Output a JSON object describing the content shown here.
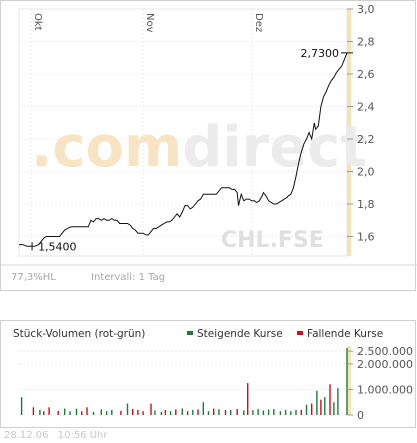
{
  "watermark": {
    "brand_light": ".com",
    "brand_dark": "direct",
    "symbol": "CHL.FSE"
  },
  "chart_data": [
    {
      "type": "line",
      "title": "",
      "xlabel": "",
      "ylabel": "",
      "x_tick_labels": [
        "Okt",
        "Nov",
        "Dez"
      ],
      "y_ticks": [
        "1,6",
        "1,8",
        "2,0",
        "2,2",
        "2,4",
        "2,6",
        "2,8",
        "3,0"
      ],
      "ylim": [
        1.48,
        3.0
      ],
      "annotations": {
        "low": "1,5400",
        "last": "2,7300"
      },
      "stats": {
        "hl_label": "77,3%HL",
        "interval_label": "Intervall: 1 Tag"
      },
      "grid": true,
      "series": [
        {
          "points": [
            [
              0,
              1.55
            ],
            [
              3,
              1.55
            ],
            [
              6,
              1.54
            ],
            [
              9,
              1.54
            ],
            [
              12,
              1.54
            ],
            [
              15,
              1.55
            ],
            [
              17,
              1.57
            ],
            [
              19,
              1.59
            ],
            [
              21,
              1.6
            ],
            [
              23,
              1.6
            ],
            [
              26,
              1.6
            ],
            [
              29,
              1.6
            ],
            [
              31,
              1.6
            ],
            [
              33,
              1.62
            ],
            [
              35,
              1.64
            ],
            [
              37,
              1.65
            ],
            [
              40,
              1.66
            ],
            [
              43,
              1.66
            ],
            [
              46,
              1.66
            ],
            [
              49,
              1.66
            ],
            [
              51,
              1.66
            ],
            [
              53,
              1.66
            ],
            [
              55,
              1.7
            ],
            [
              57,
              1.69
            ],
            [
              59,
              1.71
            ],
            [
              61,
              1.71
            ],
            [
              63,
              1.7
            ],
            [
              65,
              1.71
            ],
            [
              67,
              1.7
            ],
            [
              69,
              1.7
            ],
            [
              71,
              1.71
            ],
            [
              73,
              1.7
            ],
            [
              75,
              1.7
            ],
            [
              77,
              1.68
            ],
            [
              79,
              1.68
            ],
            [
              81,
              1.68
            ],
            [
              83,
              1.68
            ],
            [
              85,
              1.67
            ],
            [
              87,
              1.65
            ],
            [
              89,
              1.64
            ],
            [
              91,
              1.62
            ],
            [
              93,
              1.62
            ],
            [
              95,
              1.62
            ],
            [
              97,
              1.61
            ],
            [
              99,
              1.61
            ],
            [
              101,
              1.63
            ],
            [
              103,
              1.65
            ],
            [
              105,
              1.65
            ],
            [
              107,
              1.66
            ],
            [
              109,
              1.67
            ],
            [
              111,
              1.68
            ],
            [
              113,
              1.69
            ],
            [
              115,
              1.69
            ],
            [
              117,
              1.7
            ],
            [
              119,
              1.72
            ],
            [
              121,
              1.74
            ],
            [
              123,
              1.72
            ],
            [
              125,
              1.75
            ],
            [
              127,
              1.79
            ],
            [
              129,
              1.79
            ],
            [
              131,
              1.77
            ],
            [
              133,
              1.78
            ],
            [
              135,
              1.8
            ],
            [
              137,
              1.82
            ],
            [
              139,
              1.83
            ],
            [
              141,
              1.86
            ],
            [
              143,
              1.86
            ],
            [
              145,
              1.86
            ],
            [
              147,
              1.86
            ],
            [
              149,
              1.86
            ],
            [
              151,
              1.86
            ],
            [
              153,
              1.88
            ],
            [
              155,
              1.9
            ],
            [
              157,
              1.9
            ],
            [
              159,
              1.9
            ],
            [
              161,
              1.9
            ],
            [
              163,
              1.89
            ],
            [
              165,
              1.89
            ],
            [
              167,
              1.87
            ],
            [
              168,
              1.79
            ],
            [
              170,
              1.86
            ],
            [
              172,
              1.82
            ],
            [
              174,
              1.83
            ],
            [
              176,
              1.83
            ],
            [
              178,
              1.82
            ],
            [
              180,
              1.82
            ],
            [
              182,
              1.81
            ],
            [
              184,
              1.82
            ],
            [
              186,
              1.85
            ],
            [
              187,
              1.87
            ],
            [
              189,
              1.85
            ],
            [
              191,
              1.82
            ],
            [
              193,
              1.81
            ],
            [
              195,
              1.8
            ],
            [
              197,
              1.8
            ],
            [
              199,
              1.81
            ],
            [
              201,
              1.82
            ],
            [
              203,
              1.83
            ],
            [
              205,
              1.84
            ],
            [
              206,
              1.85
            ],
            [
              208,
              1.86
            ],
            [
              210,
              1.9
            ],
            [
              212,
              1.97
            ],
            [
              214,
              2.05
            ],
            [
              216,
              2.12
            ],
            [
              218,
              2.17
            ],
            [
              220,
              2.2
            ],
            [
              222,
              2.24
            ],
            [
              224,
              2.2
            ],
            [
              226,
              2.3
            ],
            [
              227,
              2.26
            ],
            [
              229,
              2.28
            ],
            [
              231,
              2.4
            ],
            [
              233,
              2.46
            ],
            [
              235,
              2.49
            ],
            [
              237,
              2.53
            ],
            [
              239,
              2.56
            ],
            [
              241,
              2.58
            ],
            [
              243,
              2.61
            ],
            [
              245,
              2.63
            ],
            [
              247,
              2.65
            ],
            [
              249,
              2.69
            ],
            [
              251,
              2.73
            ]
          ]
        }
      ]
    },
    {
      "type": "bar",
      "title": "Stück-Volumen (rot-grün)",
      "xlabel": "",
      "ylabel": "",
      "y_ticks": [
        "0",
        "1.000.000",
        "2.000.000",
        "2.500.000"
      ],
      "ylim": [
        0,
        2700000
      ],
      "legend": {
        "position": "top-right",
        "items": [
          {
            "label": "Steigende Kurse",
            "color": "#1f7a3a"
          },
          {
            "label": "Fallende Kurse",
            "color": "#c0141e"
          }
        ]
      },
      "grid": true,
      "bars": [
        [
          2,
          700000,
          "green"
        ],
        [
          11,
          300000,
          "red"
        ],
        [
          16,
          200000,
          "green"
        ],
        [
          19,
          150000,
          "red"
        ],
        [
          23,
          300000,
          "red"
        ],
        [
          30,
          160000,
          "red"
        ],
        [
          35,
          250000,
          "green"
        ],
        [
          39,
          150000,
          "green"
        ],
        [
          44,
          250000,
          "green"
        ],
        [
          48,
          150000,
          "red"
        ],
        [
          52,
          300000,
          "red"
        ],
        [
          57,
          120000,
          "green"
        ],
        [
          63,
          220000,
          "green"
        ],
        [
          67,
          150000,
          "green"
        ],
        [
          71,
          200000,
          "green"
        ],
        [
          78,
          160000,
          "red"
        ],
        [
          83,
          450000,
          "green"
        ],
        [
          87,
          240000,
          "red"
        ],
        [
          91,
          200000,
          "red"
        ],
        [
          95,
          150000,
          "red"
        ],
        [
          101,
          450000,
          "red"
        ],
        [
          104,
          180000,
          "green"
        ],
        [
          109,
          120000,
          "green"
        ],
        [
          112,
          200000,
          "red"
        ],
        [
          116,
          150000,
          "green"
        ],
        [
          120,
          220000,
          "red"
        ],
        [
          125,
          260000,
          "green"
        ],
        [
          129,
          150000,
          "red"
        ],
        [
          133,
          200000,
          "green"
        ],
        [
          137,
          220000,
          "red"
        ],
        [
          141,
          500000,
          "green"
        ],
        [
          145,
          150000,
          "green"
        ],
        [
          149,
          250000,
          "red"
        ],
        [
          153,
          220000,
          "green"
        ],
        [
          158,
          200000,
          "red"
        ],
        [
          162,
          200000,
          "green"
        ],
        [
          167,
          230000,
          "red"
        ],
        [
          172,
          180000,
          "green"
        ],
        [
          175,
          1250000,
          "red"
        ],
        [
          179,
          190000,
          "green"
        ],
        [
          183,
          230000,
          "green"
        ],
        [
          187,
          180000,
          "green"
        ],
        [
          191,
          210000,
          "green"
        ],
        [
          195,
          230000,
          "green"
        ],
        [
          200,
          150000,
          "green"
        ],
        [
          204,
          200000,
          "green"
        ],
        [
          208,
          150000,
          "green"
        ],
        [
          212,
          200000,
          "green"
        ],
        [
          216,
          200000,
          "red"
        ],
        [
          220,
          400000,
          "green"
        ],
        [
          224,
          450000,
          "red"
        ],
        [
          228,
          950000,
          "green"
        ],
        [
          231,
          600000,
          "red"
        ],
        [
          234,
          700000,
          "green"
        ],
        [
          238,
          1200000,
          "red"
        ],
        [
          241,
          500000,
          "green"
        ],
        [
          244,
          1050000,
          "green"
        ],
        [
          251,
          2620000,
          "green"
        ]
      ]
    }
  ],
  "footer": {
    "date": "28.12.06",
    "time": "10:56 Uhr"
  }
}
